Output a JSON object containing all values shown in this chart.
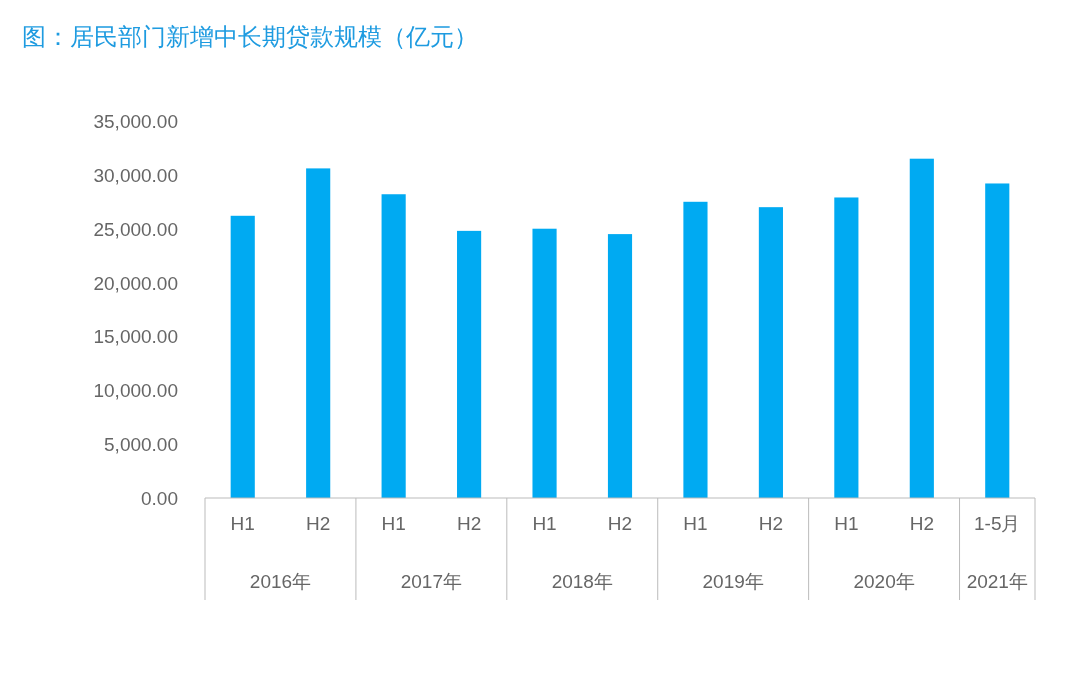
{
  "chart_data": {
    "type": "bar",
    "title": "图：居民部门新增中长期贷款规模（亿元）",
    "categories": [
      "H1",
      "H2",
      "H1",
      "H2",
      "H1",
      "H2",
      "H1",
      "H2",
      "H1",
      "H2",
      "1-5月"
    ],
    "values": [
      26200,
      30600,
      28200,
      24800,
      25000,
      24500,
      27500,
      27000,
      27900,
      31500,
      29200
    ],
    "color": "#00aaf2",
    "ylim": [
      0,
      35000
    ],
    "yticks": [
      {
        "value": 0,
        "label": "0.00"
      },
      {
        "value": 5000,
        "label": "5,000.00"
      },
      {
        "value": 10000,
        "label": "10,000.00"
      },
      {
        "value": 15000,
        "label": "15,000.00"
      },
      {
        "value": 20000,
        "label": "20,000.00"
      },
      {
        "value": 25000,
        "label": "25,000.00"
      },
      {
        "value": 30000,
        "label": "30,000.00"
      },
      {
        "value": 35000,
        "label": "35,000.00"
      }
    ],
    "annotations": [
      "2016年",
      "2017年",
      "2018年",
      "2019年",
      "2020年",
      "2021年"
    ],
    "grid": false
  }
}
